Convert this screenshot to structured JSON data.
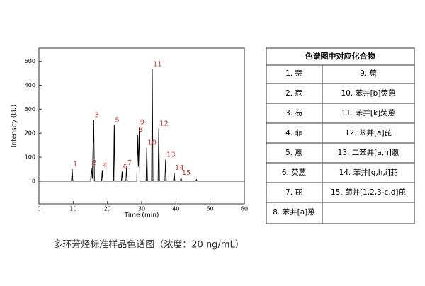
{
  "chart_data": {
    "type": "line",
    "x_label": "Time (min)",
    "y_label": "Intensity (LU)",
    "xlim": [
      0,
      60
    ],
    "xticks": [
      0,
      10,
      20,
      30,
      40,
      50,
      60
    ],
    "ylim": [
      -95,
      555
    ],
    "yticks": [
      0,
      100,
      200,
      300,
      400,
      500
    ],
    "series": [
      {
        "color": "#000000",
        "x": [
          0,
          9.5,
          9.7,
          9.9,
          15.1,
          15.3,
          15.6,
          16.0,
          16.2,
          18.3,
          18.5,
          18.7,
          21.8,
          22.0,
          22.2,
          24.1,
          24.3,
          24.5,
          25.4,
          25.6,
          25.8,
          28.6,
          28.8,
          29.05,
          29.3,
          29.5,
          31.3,
          31.5,
          31.7,
          32.9,
          33.1,
          33.3,
          34.8,
          35.0,
          35.2,
          36.8,
          37.0,
          37.2,
          39.3,
          39.5,
          39.7,
          41.3,
          41.5,
          41.7,
          45.8,
          46.0,
          46.2,
          60
        ],
        "values": [
          0,
          0,
          50,
          0,
          0,
          55,
          10,
          255,
          0,
          0,
          45,
          0,
          0,
          235,
          0,
          0,
          40,
          0,
          0,
          55,
          0,
          0,
          195,
          60,
          225,
          0,
          0,
          140,
          0,
          0,
          468,
          0,
          0,
          220,
          0,
          0,
          90,
          0,
          0,
          35,
          0,
          0,
          15,
          0,
          0,
          6,
          0,
          0
        ]
      }
    ],
    "label_color": "#e03030",
    "annotations": [
      {
        "text": "1",
        "x": 9.7,
        "y": 50
      },
      {
        "text": "2",
        "x": 15.3,
        "y": 55
      },
      {
        "text": "3",
        "x": 16.0,
        "y": 255
      },
      {
        "text": "4",
        "x": 18.5,
        "y": 45
      },
      {
        "text": "5",
        "x": 22.0,
        "y": 235
      },
      {
        "text": "6",
        "x": 24.3,
        "y": 40
      },
      {
        "text": "7",
        "x": 25.6,
        "y": 55
      },
      {
        "text": "8",
        "x": 28.8,
        "y": 195
      },
      {
        "text": "9",
        "x": 29.3,
        "y": 225
      },
      {
        "text": "10",
        "x": 31.5,
        "y": 140
      },
      {
        "text": "11",
        "x": 33.1,
        "y": 468
      },
      {
        "text": "12",
        "x": 35.0,
        "y": 220
      },
      {
        "text": "13",
        "x": 37.0,
        "y": 90
      },
      {
        "text": "14",
        "x": 39.5,
        "y": 35
      },
      {
        "text": "15",
        "x": 41.5,
        "y": 15
      }
    ]
  },
  "table": {
    "header": "色谱图中对应化合物",
    "rows": [
      [
        "1. 萘",
        "9. 䓛"
      ],
      [
        "2. 苊",
        "10. 苯并[b]荧蒽"
      ],
      [
        "3. 芴",
        "11. 苯并[k]荧蒽"
      ],
      [
        "4. 菲",
        "12. 苯并[a]芘"
      ],
      [
        "5. 蒽",
        "13. 二苯并[a,h]蒽"
      ],
      [
        "6. 荧蒽",
        "14. 苯并[g,h,i]苝"
      ],
      [
        "7. 芘",
        "15. 茚并[1,2,3-c,d]芘"
      ],
      [
        "8. 苯并[a]蒽",
        null
      ]
    ]
  },
  "caption": "多环芳烃标准样品色谱图（浓度：20 ng/mL）"
}
